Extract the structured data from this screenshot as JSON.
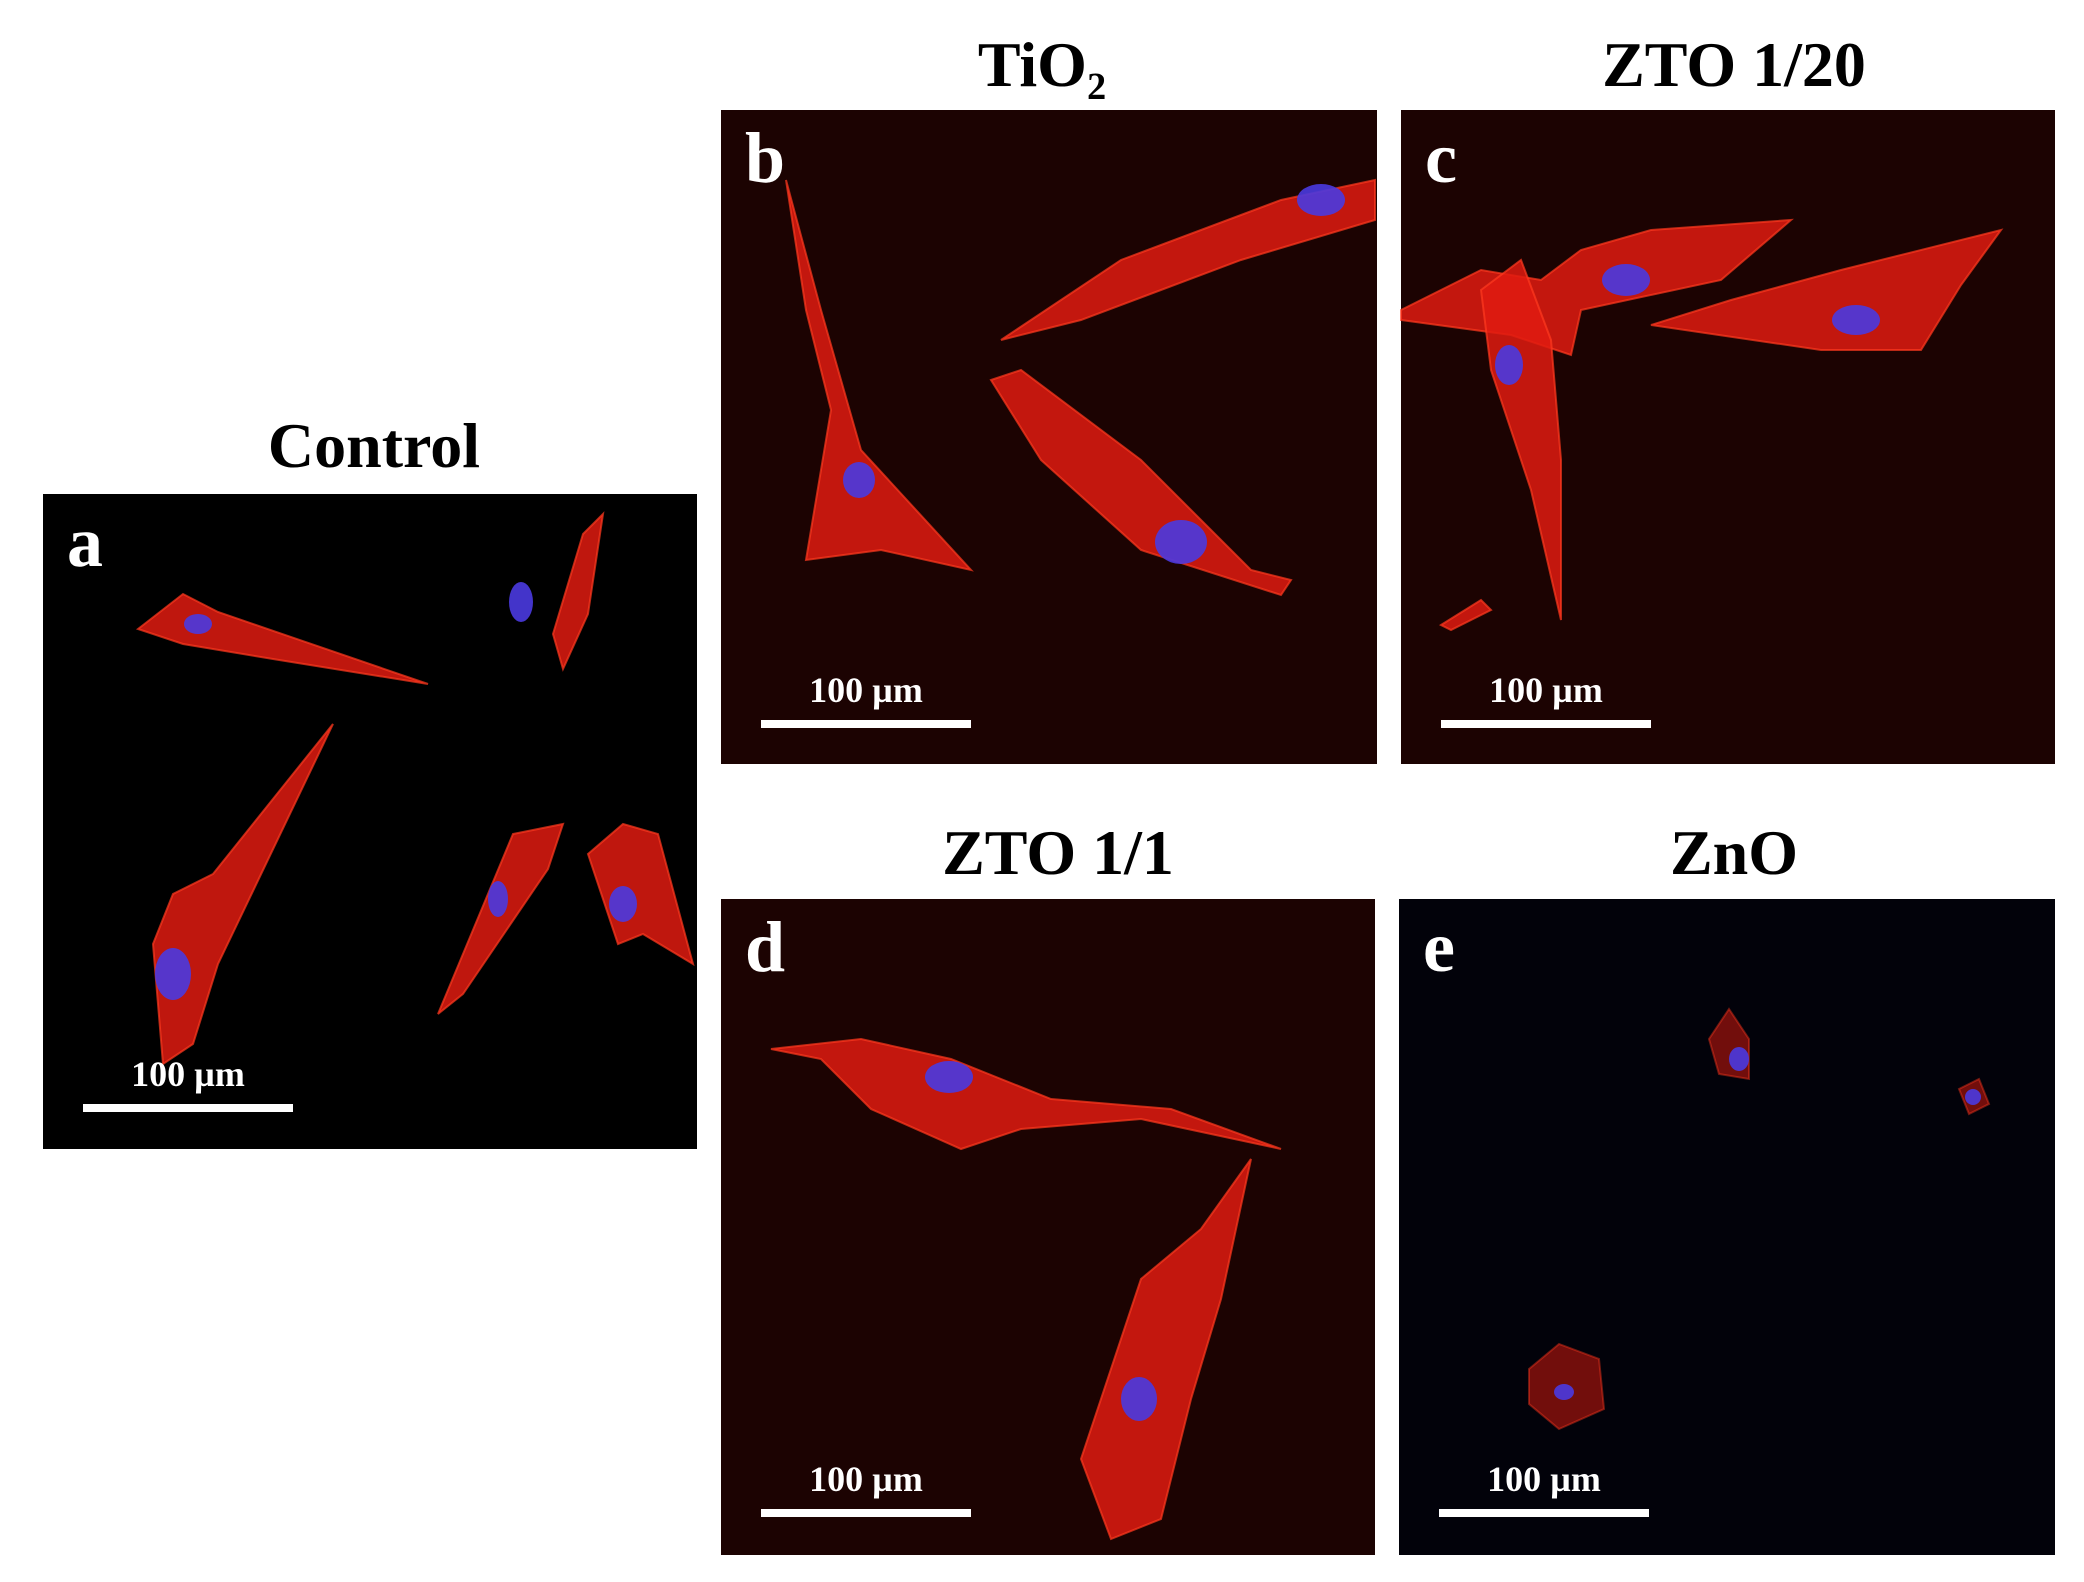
{
  "panels": [
    {
      "title": "Control",
      "letter": "a",
      "scale_label": "100 µm"
    },
    {
      "title": "TiO₂",
      "letter": "b",
      "scale_label": "100 µm"
    },
    {
      "title": "ZTO 1/20",
      "letter": "c",
      "scale_label": "100 µm"
    },
    {
      "title": "ZTO 1/1",
      "letter": "d",
      "scale_label": "100 µm"
    },
    {
      "title": "ZnO",
      "letter": "e",
      "scale_label": "100 µm"
    }
  ]
}
